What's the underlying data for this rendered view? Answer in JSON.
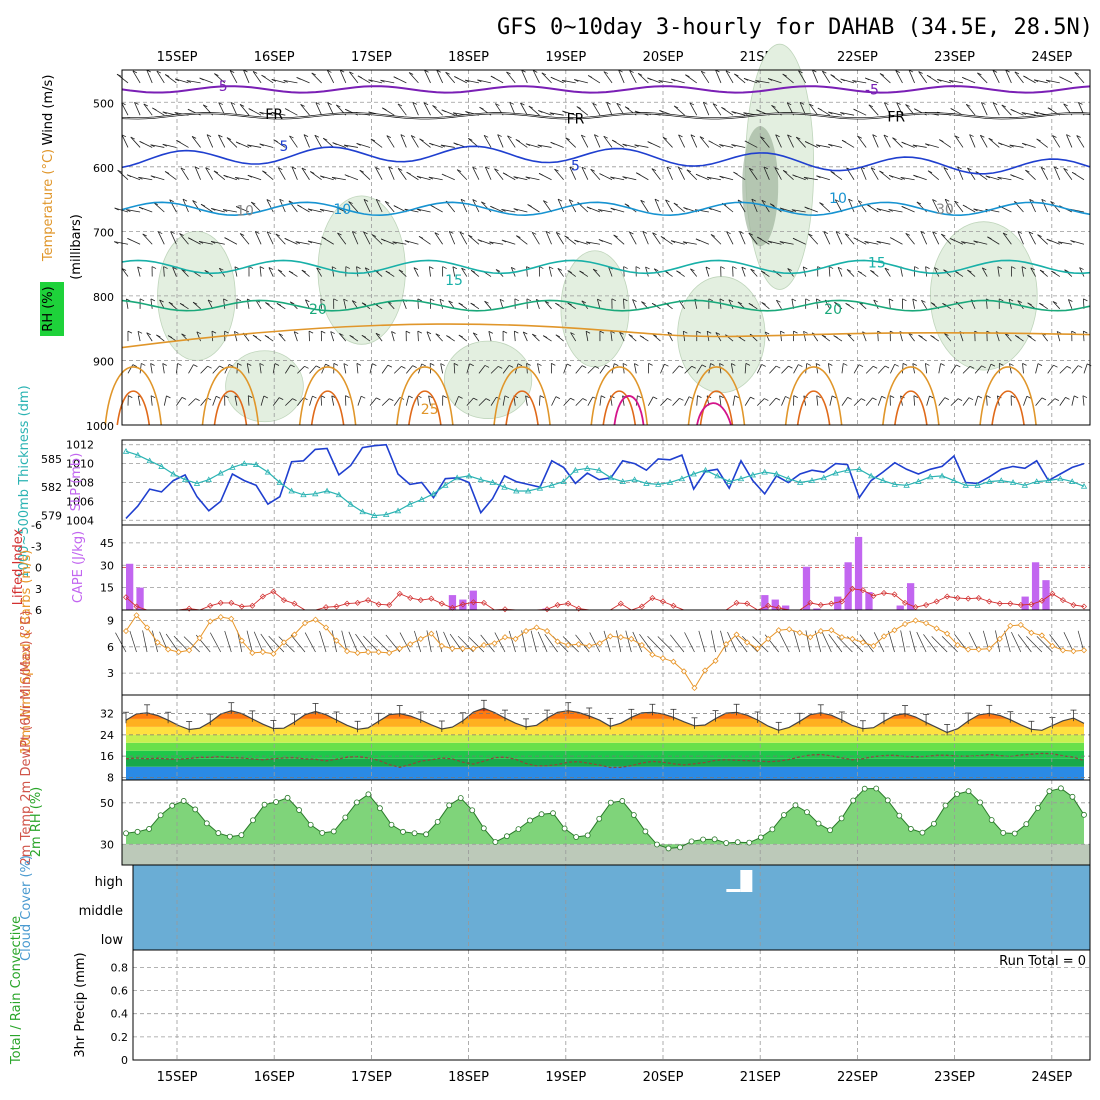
{
  "title": "GFS 0~10day 3-hourly for DAHAB (34.5E, 28.5N)",
  "dates": [
    "15SEP",
    "16SEP",
    "17SEP",
    "18SEP",
    "19SEP",
    "20SEP",
    "21SEP",
    "22SEP",
    "23SEP",
    "24SEP"
  ],
  "colors": {
    "grid": "#999999",
    "slp": "#1f3fcf",
    "thick": "#2bb3b3",
    "cape": "#c266f0",
    "li": "#d23030",
    "wind10": "#e8962a",
    "temp": "#555555",
    "rhline": "#2a7a2a",
    "cloud": "#6aadd5"
  },
  "chart_data": [
    {
      "type": "contour",
      "panel": "upper-air",
      "ylabel": "(millibars)",
      "legend_labels": [
        "Wind (m/s)",
        "Temperature (°C)",
        "RH (%)"
      ],
      "yticks": [
        "500",
        "600",
        "700",
        "800",
        "900",
        "1000"
      ],
      "ylim": [
        1000,
        450
      ],
      "isotherm_labels": [
        {
          "text": "-5",
          "color": "#7a1fb5",
          "x": 0.45,
          "p": 475
        },
        {
          "text": "-5",
          "color": "#7a1fb5",
          "x": 7.15,
          "p": 480
        },
        {
          "text": "FR",
          "color": "#000000",
          "x": 1.0,
          "p": 518
        },
        {
          "text": "FR",
          "color": "#000000",
          "x": 4.1,
          "p": 525
        },
        {
          "text": "FR",
          "color": "#000000",
          "x": 7.4,
          "p": 522
        },
        {
          "text": "5",
          "color": "#1f3fcf",
          "x": 1.1,
          "p": 568
        },
        {
          "text": "5",
          "color": "#1f3fcf",
          "x": 4.1,
          "p": 598
        },
        {
          "text": "10",
          "color": "#1793d1",
          "x": 1.7,
          "p": 665
        },
        {
          "text": "10",
          "color": "#1793d1",
          "x": 6.8,
          "p": 648
        },
        {
          "text": "30",
          "color": "#888888",
          "x": 7.9,
          "p": 665
        },
        {
          "text": "10",
          "color": "#888888",
          "x": 0.7,
          "p": 668
        },
        {
          "text": "15",
          "color": "#18b0a8",
          "x": 2.85,
          "p": 775
        },
        {
          "text": "15",
          "color": "#18b0a8",
          "x": 7.2,
          "p": 748
        },
        {
          "text": "20",
          "color": "#1aa87a",
          "x": 1.45,
          "p": 820
        },
        {
          "text": "20",
          "color": "#1aa87a",
          "x": 6.75,
          "p": 820
        },
        {
          "text": "25",
          "color": "#e0962a",
          "x": 2.6,
          "p": 975
        }
      ]
    },
    {
      "type": "line",
      "panel": "slp-thickness",
      "ylabel_left": "1000~500mb Thickness (dm)",
      "ylabel_right": "SLP (mb)",
      "yticks_left": [
        "585",
        "582",
        "579"
      ],
      "yticks_right": [
        "1012",
        "1010",
        "1008",
        "1006",
        "1004"
      ],
      "ylim_slp": [
        1003.5,
        1012.5
      ],
      "series": [
        {
          "name": "SLP",
          "values": [
            1004.2,
            1005.5,
            1007.3,
            1007.0,
            1008.2,
            1008.8,
            1006.5,
            1005.0,
            1006.0,
            1008.9,
            1008.2,
            1007.7,
            1005.7,
            1006.5,
            1010.2,
            1010.3,
            1011.5,
            1011.6,
            1008.8,
            1009.8,
            1011.7,
            1011.9,
            1012.0,
            1008.9,
            1007.8,
            1008.0,
            1006.4,
            1008.4,
            1008.5,
            1008.0,
            1004.8,
            1006.3,
            1008.7,
            1008.1,
            1007.8,
            1007.5,
            1010.3,
            1009.6,
            1007.9,
            1009.0,
            1008.3,
            1008.5,
            1010.3,
            1010.0,
            1009.3,
            1010.5,
            1010.4,
            1010.9,
            1007.3,
            1009.2,
            1009.4,
            1007.4,
            1010.3,
            1008.2,
            1006.8,
            1008.7,
            1008.0,
            1008.9,
            1009.3,
            1009.1,
            1010.0,
            1009.9,
            1006.4,
            1008.2,
            1009.1,
            1010.1,
            1009.4,
            1008.9,
            1009.4,
            1009.7,
            1010.8,
            1008.0,
            1007.9,
            1008.6,
            1009.4,
            1009.7,
            1009.5,
            1010.3,
            1008.2,
            1008.9,
            1009.6,
            1010.0
          ]
        },
        {
          "name": "Thickness",
          "values": [
            585.8,
            585.4,
            584.8,
            584.2,
            583.4,
            582.8,
            582.4,
            582.8,
            583.5,
            584.1,
            584.5,
            584.4,
            583.6,
            582.5,
            581.6,
            581.2,
            581.3,
            581.6,
            581.2,
            580.2,
            579.4,
            579.0,
            579.1,
            579.5,
            580.2,
            580.7,
            581.3,
            582.2,
            583.0,
            583.2,
            582.8,
            582.5,
            582.0,
            581.6,
            581.6,
            581.9,
            582.2,
            582.6,
            583.8,
            584.0,
            583.8,
            583.0,
            582.6,
            582.8,
            582.4,
            582.3,
            582.5,
            582.9,
            583.4,
            583.8,
            583.2,
            582.6,
            582.9,
            583.3,
            583.6,
            583.4,
            582.9,
            582.5,
            582.7,
            583.0,
            583.5,
            583.8,
            583.9,
            583.2,
            582.7,
            582.3,
            582.2,
            582.6,
            583.1,
            583.2,
            582.7,
            582.2,
            582.2,
            582.6,
            582.7,
            582.5,
            582.2,
            582.6,
            582.7,
            582.9,
            582.6,
            582.1
          ]
        }
      ]
    },
    {
      "type": "bar",
      "panel": "cape-li",
      "ylabel_left": "Lifted Index",
      "ylabel_right": "CAPE (J/kg)",
      "yticks_left": [
        "-6",
        "-3",
        "0",
        "3",
        "6"
      ],
      "yticks_right": [
        "45",
        "30",
        "15"
      ],
      "cape": [
        31,
        15,
        0,
        0,
        0,
        0,
        0,
        0,
        0,
        0,
        0,
        0,
        0,
        0,
        0,
        0,
        0,
        0,
        0,
        0,
        0,
        0,
        0,
        0,
        0,
        0,
        0,
        0,
        0,
        0,
        0,
        10,
        7,
        13,
        0,
        0,
        0,
        0,
        0,
        0,
        1,
        0,
        0,
        0,
        0,
        0,
        0,
        0,
        0,
        0,
        0,
        0,
        0,
        0,
        0,
        0,
        0,
        0,
        0,
        0,
        0,
        10,
        7,
        3,
        0,
        29,
        1,
        0,
        9,
        32,
        49,
        12,
        0,
        0,
        3,
        18,
        0,
        0,
        0,
        0,
        0,
        0,
        0,
        0,
        0,
        0,
        9,
        32,
        20,
        0,
        0,
        0
      ],
      "li": [
        4.2,
        5.5,
        6.0,
        6.0,
        6.0,
        6.0,
        5.8,
        6.0,
        5.4,
        5.0,
        5.0,
        5.5,
        5.4,
        4.1,
        3.4,
        4.6,
        5.1,
        6.0,
        6.0,
        5.6,
        5.5,
        5.1,
        5.0,
        4.6,
        5.2,
        5.3,
        3.7,
        4.3,
        4.6,
        4.4,
        5.1,
        5.7,
        5.2,
        4.9,
        5.0,
        6.0,
        5.9,
        6.0,
        6.0,
        6.0,
        5.9,
        5.3,
        5.1,
        5.8,
        6.0,
        6.0,
        6.0,
        5.1,
        6.0,
        5.5,
        4.3,
        4.8,
        5.4,
        6.0,
        6.0,
        6.0,
        6.0,
        6.0,
        5.0,
        5.1,
        6.0,
        5.4,
        5.7,
        6.0,
        6.0,
        5.0,
        5.3,
        5.1,
        4.8,
        3.0,
        3.2,
        4.0,
        3.6,
        3.8,
        5.0,
        5.6,
        5.3,
        4.8,
        4.1,
        4.3,
        4.4,
        4.3,
        4.8,
        5.1,
        5.1,
        5.3,
        5.2,
        4.7,
        3.7,
        4.6,
        5.3,
        5.5
      ]
    },
    {
      "type": "line",
      "panel": "wind10m",
      "ylabel": "10m Wind Speed & Barbs (m/s)",
      "yticks": [
        "9",
        "6",
        "3"
      ],
      "ylim": [
        0.5,
        10.2
      ],
      "values": [
        7.8,
        9.6,
        8.2,
        6.5,
        5.7,
        5.4,
        5.6,
        7.0,
        8.9,
        9.4,
        9.2,
        6.7,
        5.3,
        5.4,
        5.2,
        6.5,
        7.4,
        8.7,
        9.1,
        8.2,
        6.7,
        5.5,
        5.3,
        5.4,
        5.4,
        5.3,
        5.8,
        6.3,
        6.9,
        7.5,
        6.1,
        5.8,
        5.8,
        5.8,
        6.2,
        6.4,
        7.1,
        6.9,
        7.8,
        8.2,
        7.8,
        6.6,
        6.2,
        6.3,
        6.1,
        6.4,
        7.2,
        7.1,
        6.9,
        6.2,
        5.1,
        4.7,
        4.3,
        3.2,
        1.3,
        3.3,
        4.4,
        6.3,
        7.4,
        6.5,
        5.8,
        6.9,
        7.9,
        8.0,
        7.6,
        7.1,
        7.8,
        7.9,
        7.1,
        6.9,
        6.5,
        6.1,
        7.2,
        7.9,
        8.6,
        9.0,
        8.7,
        8.1,
        7.5,
        6.2,
        5.7,
        5.7,
        5.8,
        6.9,
        8.4,
        8.5,
        7.6,
        7.3,
        6.1,
        5.6,
        5.5,
        5.6
      ]
    },
    {
      "type": "area",
      "panel": "temp-dewpt",
      "ylabel": "2m Temp 2m DewPt (6hr Min/Max) (°C)",
      "yticks": [
        "32",
        "24",
        "16",
        "8"
      ],
      "ylim": [
        7,
        39
      ],
      "temp": [
        29.5,
        31.9,
        32.3,
        31.3,
        29.5,
        27.5,
        26.0,
        26.5,
        28.8,
        31.8,
        33.1,
        32.0,
        30.0,
        28.0,
        26.4,
        26.5,
        28.8,
        31.6,
        32.8,
        31.6,
        29.6,
        27.6,
        26.1,
        26.6,
        29.1,
        31.6,
        32.0,
        31.1,
        29.6,
        27.8,
        26.2,
        26.9,
        29.3,
        32.6,
        34.0,
        32.4,
        30.3,
        28.4,
        27.0,
        27.6,
        30.3,
        32.5,
        33.1,
        32.4,
        31.1,
        29.5,
        27.2,
        28.4,
        30.6,
        32.3,
        32.5,
        31.9,
        30.6,
        28.9,
        27.4,
        27.7,
        30.1,
        32.2,
        32.5,
        31.4,
        29.6,
        27.3,
        25.7,
        26.8,
        29.1,
        31.6,
        32.3,
        31.4,
        29.6,
        27.5,
        26.3,
        26.7,
        29.1,
        31.3,
        32.0,
        30.7,
        28.7,
        26.8,
        24.9,
        26.3,
        29.2,
        31.5,
        32.1,
        31.3,
        29.7,
        27.8,
        26.1,
        25.7,
        27.5,
        29.3,
        30.3,
        28.3
      ],
      "dewpt": [
        15.0,
        15.3,
        15.0,
        15.2,
        14.9,
        14.8,
        15.1,
        15.5,
        15.5,
        15.8,
        15.4,
        15.3,
        14.9,
        14.6,
        15.0,
        15.3,
        15.4,
        14.9,
        14.8,
        14.2,
        14.8,
        15.6,
        15.8,
        15.3,
        14.4,
        12.8,
        11.8,
        12.8,
        14.1,
        14.6,
        15.3,
        14.9,
        13.7,
        13.0,
        14.1,
        15.4,
        15.6,
        14.8,
        13.2,
        12.3,
        12.4,
        12.8,
        13.7,
        13.9,
        13.3,
        12.6,
        11.7,
        11.8,
        12.4,
        13.4,
        14.0,
        13.7,
        13.1,
        12.7,
        13.1,
        13.6,
        14.4,
        14.6,
        14.4,
        14.3,
        14.1,
        13.9,
        14.1,
        14.7,
        15.7,
        16.4,
        16.6,
        16.1,
        15.3,
        14.6,
        15.0,
        15.8,
        16.2,
        16.3,
        15.9,
        15.7,
        15.9,
        16.3,
        16.3,
        16.0,
        16.0,
        16.2,
        16.6,
        16.2,
        15.9,
        16.4,
        16.7,
        17.0,
        16.9,
        16.1,
        15.6,
        14.3
      ]
    },
    {
      "type": "area",
      "panel": "rh2m",
      "ylabel": "2m RH (%)",
      "yticks": [
        "50",
        "30"
      ],
      "ylim": [
        20,
        61
      ],
      "values": [
        35.3,
        36.0,
        37.4,
        44.0,
        48.6,
        50.9,
        46.8,
        40.1,
        35.4,
        33.7,
        34.4,
        41.6,
        49.1,
        50.4,
        52.4,
        46.5,
        39.4,
        35.5,
        36.2,
        42.9,
        50.2,
        54.1,
        47.4,
        39.4,
        36.0,
        35.3,
        34.8,
        40.8,
        48.8,
        52.3,
        46.4,
        37.7,
        31.1,
        33.9,
        37.3,
        41.5,
        44.5,
        45.0,
        37.6,
        33.5,
        34.3,
        42.3,
        50.1,
        50.9,
        44.1,
        36.2,
        29.9,
        28.0,
        28.5,
        31.4,
        32.3,
        32.4,
        30.6,
        31.0,
        30.8,
        33.3,
        37.2,
        44.1,
        48.8,
        45.5,
        40.0,
        36.8,
        42.5,
        51.1,
        56.8,
        56.9,
        51.2,
        43.8,
        37.4,
        35.6,
        39.9,
        48.7,
        54.2,
        55.6,
        50.2,
        41.7,
        35.5,
        35.2,
        39.7,
        47.5,
        55.6,
        57.0,
        52.9,
        44.2
      ]
    },
    {
      "type": "bar",
      "panel": "cloud",
      "ylabel": "Cloud Cover (%)",
      "levels": [
        "high",
        "middle",
        "low"
      ],
      "white_gap": [
        0.62,
        0.635
      ]
    },
    {
      "type": "bar",
      "panel": "precip",
      "ylabel_left": "Total / Rain Convective",
      "ylabel_right": "3hr Precip (mm)",
      "yticks": [
        "0.8",
        "0.6",
        "0.4",
        "0.2",
        "0"
      ],
      "run_total": "Run Total = 0",
      "values": []
    }
  ]
}
